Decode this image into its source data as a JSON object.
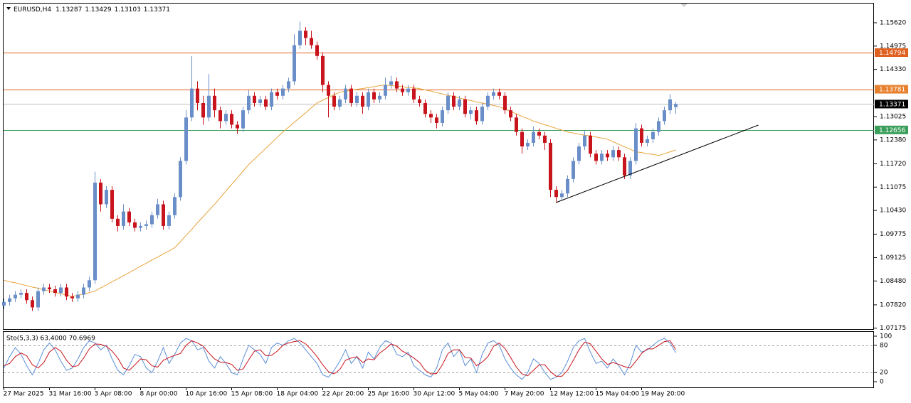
{
  "chart_data": [
    {
      "type": "candlestick",
      "symbol": "EURUSD,H4",
      "header_values": [
        1.13287,
        1.13429,
        1.13103,
        1.13371
      ],
      "categories": [
        "27 Mar 2025",
        null,
        null,
        null,
        null,
        null,
        null,
        null,
        "31 Mar 16:00",
        null,
        null,
        null,
        null,
        null,
        null,
        null,
        "3 Apr 08:00",
        null,
        null,
        null,
        null,
        null,
        null,
        null,
        "8 Apr 00:00",
        null,
        null,
        null,
        null,
        null,
        null,
        null,
        "10 Apr 16:00",
        null,
        null,
        null,
        null,
        null,
        null,
        null,
        "15 Apr 08:00",
        null,
        null,
        null,
        null,
        null,
        null,
        null,
        "18 Apr 04:00",
        null,
        null,
        null,
        null,
        null,
        null,
        null,
        "22 Apr 20:00",
        null,
        null,
        null,
        null,
        null,
        null,
        null,
        "25 Apr 16:00",
        null,
        null,
        null,
        null,
        null,
        null,
        null,
        "30 Apr 12:00",
        null,
        null,
        null,
        null,
        null,
        null,
        null,
        "5 May 04:00",
        null,
        null,
        null,
        null,
        null,
        null,
        null,
        "7 May 20:00",
        null,
        null,
        null,
        null,
        null,
        null,
        null,
        "12 May 12:00",
        null,
        null,
        null,
        null,
        null,
        null,
        null,
        "15 May 04:00",
        null,
        null,
        null,
        null,
        null,
        null,
        null,
        "19 May 20:00",
        null,
        null,
        null,
        null,
        null,
        null
      ],
      "open": [
        1.078,
        1.079,
        1.08,
        1.081,
        1.0815,
        1.0795,
        1.0775,
        1.082,
        1.083,
        1.0825,
        1.0815,
        1.083,
        1.0805,
        1.08,
        1.081,
        1.083,
        1.085,
        1.112,
        1.106,
        1.11,
        1.102,
        1.1,
        1.104,
        1.101,
        1.0995,
        1.1,
        1.1005,
        1.103,
        1.106,
        1.1,
        1.103,
        1.108,
        1.118,
        1.13,
        1.138,
        1.134,
        1.13,
        1.136,
        1.132,
        1.129,
        1.131,
        1.128,
        1.127,
        1.132,
        1.136,
        1.134,
        1.135,
        1.133,
        1.137,
        1.136,
        1.138,
        1.14,
        1.15,
        1.154,
        1.152,
        1.15,
        1.147,
        1.139,
        1.136,
        1.133,
        1.135,
        1.138,
        1.134,
        1.136,
        1.133,
        1.137,
        1.135,
        1.136,
        1.139,
        1.14,
        1.138,
        1.137,
        1.138,
        1.135,
        1.134,
        1.131,
        1.13,
        1.1285,
        1.132,
        1.136,
        1.133,
        1.135,
        1.131,
        1.132,
        1.129,
        1.133,
        1.136,
        1.137,
        1.136,
        1.132,
        1.13,
        1.126,
        1.122,
        1.123,
        1.126,
        1.125,
        1.123,
        1.11,
        1.108,
        1.109,
        1.113,
        1.118,
        1.122,
        1.125,
        1.12,
        1.118,
        1.12,
        1.119,
        1.121,
        1.119,
        1.114,
        1.118,
        1.127,
        1.123,
        1.124,
        1.126,
        1.129,
        1.132,
        1.13287
      ],
      "high": [
        1.08,
        1.081,
        1.082,
        1.0825,
        1.0825,
        1.0805,
        1.083,
        1.084,
        1.084,
        1.0835,
        1.084,
        1.084,
        1.0815,
        1.082,
        1.084,
        1.086,
        1.115,
        1.113,
        1.111,
        1.111,
        1.103,
        1.106,
        1.105,
        1.102,
        1.101,
        1.1015,
        1.104,
        1.1075,
        1.107,
        1.104,
        1.109,
        1.119,
        1.132,
        1.147,
        1.14,
        1.136,
        1.142,
        1.138,
        1.133,
        1.132,
        1.132,
        1.129,
        1.133,
        1.1375,
        1.137,
        1.136,
        1.136,
        1.138,
        1.138,
        1.139,
        1.141,
        1.153,
        1.1565,
        1.155,
        1.154,
        1.151,
        1.148,
        1.14,
        1.137,
        1.136,
        1.139,
        1.139,
        1.137,
        1.137,
        1.138,
        1.138,
        1.137,
        1.141,
        1.1415,
        1.141,
        1.139,
        1.139,
        1.139,
        1.136,
        1.135,
        1.132,
        1.131,
        1.133,
        1.137,
        1.137,
        1.136,
        1.136,
        1.133,
        1.133,
        1.134,
        1.137,
        1.138,
        1.138,
        1.137,
        1.133,
        1.131,
        1.127,
        1.124,
        1.1275,
        1.127,
        1.126,
        1.124,
        1.111,
        1.11,
        1.114,
        1.119,
        1.123,
        1.1265,
        1.126,
        1.121,
        1.121,
        1.121,
        1.122,
        1.122,
        1.12,
        1.119,
        1.1285,
        1.128,
        1.125,
        1.127,
        1.13,
        1.133,
        1.1365,
        1.13429
      ],
      "low": [
        1.077,
        1.078,
        1.079,
        1.08,
        1.0785,
        1.0765,
        1.0765,
        1.081,
        1.0815,
        1.0805,
        1.0805,
        1.0795,
        1.079,
        1.079,
        1.08,
        1.082,
        1.084,
        1.104,
        1.105,
        1.101,
        1.0985,
        1.099,
        1.1,
        1.0985,
        1.0985,
        1.099,
        1.0995,
        1.102,
        1.099,
        1.099,
        1.102,
        1.107,
        1.117,
        1.129,
        1.132,
        1.128,
        1.129,
        1.13,
        1.127,
        1.128,
        1.127,
        1.1255,
        1.126,
        1.131,
        1.133,
        1.133,
        1.132,
        1.132,
        1.135,
        1.135,
        1.137,
        1.139,
        1.149,
        1.15,
        1.149,
        1.146,
        1.137,
        1.13,
        1.132,
        1.132,
        1.134,
        1.133,
        1.133,
        1.131,
        1.132,
        1.134,
        1.134,
        1.135,
        1.138,
        1.137,
        1.136,
        1.136,
        1.134,
        1.133,
        1.13,
        1.1285,
        1.127,
        1.1275,
        1.131,
        1.132,
        1.132,
        1.13,
        1.1295,
        1.128,
        1.128,
        1.132,
        1.135,
        1.135,
        1.131,
        1.129,
        1.125,
        1.12,
        1.121,
        1.122,
        1.124,
        1.121,
        1.108,
        1.1065,
        1.107,
        1.108,
        1.112,
        1.117,
        1.121,
        1.119,
        1.117,
        1.117,
        1.118,
        1.118,
        1.118,
        1.113,
        1.113,
        1.117,
        1.122,
        1.122,
        1.123,
        1.125,
        1.128,
        1.131,
        1.13103
      ],
      "close": [
        1.079,
        1.08,
        1.081,
        1.0815,
        1.0795,
        1.0775,
        1.082,
        1.083,
        1.0825,
        1.0815,
        1.083,
        1.0805,
        1.08,
        1.081,
        1.083,
        1.085,
        1.112,
        1.106,
        1.11,
        1.102,
        1.1,
        1.104,
        1.101,
        1.0995,
        1.1,
        1.1005,
        1.103,
        1.106,
        1.1,
        1.103,
        1.108,
        1.118,
        1.13,
        1.138,
        1.134,
        1.13,
        1.136,
        1.132,
        1.129,
        1.131,
        1.128,
        1.127,
        1.132,
        1.136,
        1.134,
        1.135,
        1.133,
        1.137,
        1.136,
        1.138,
        1.14,
        1.15,
        1.154,
        1.152,
        1.15,
        1.147,
        1.139,
        1.136,
        1.133,
        1.135,
        1.138,
        1.134,
        1.136,
        1.133,
        1.137,
        1.135,
        1.136,
        1.139,
        1.14,
        1.138,
        1.137,
        1.138,
        1.135,
        1.134,
        1.131,
        1.13,
        1.1285,
        1.132,
        1.136,
        1.133,
        1.135,
        1.131,
        1.132,
        1.129,
        1.133,
        1.136,
        1.137,
        1.136,
        1.132,
        1.13,
        1.126,
        1.122,
        1.123,
        1.126,
        1.125,
        1.123,
        1.11,
        1.108,
        1.109,
        1.113,
        1.118,
        1.122,
        1.125,
        1.12,
        1.118,
        1.12,
        1.119,
        1.121,
        1.119,
        1.114,
        1.118,
        1.127,
        1.123,
        1.124,
        1.126,
        1.129,
        1.132,
        1.135,
        1.13371
      ],
      "up_color": "#6a8fc8",
      "down_color": "#c8141c",
      "overlay": {
        "color": "#e8a33c",
        "values": [
          1.085,
          1.0846,
          1.0843,
          1.0839,
          1.0835,
          1.0831,
          1.0828,
          1.0824,
          1.082,
          1.0816,
          1.0813,
          1.0809,
          1.0805,
          1.0809,
          1.0812,
          1.0816,
          1.082,
          1.0829,
          1.0837,
          1.0846,
          1.0854,
          1.0863,
          1.0871,
          1.088,
          1.0889,
          1.0897,
          1.0906,
          1.0914,
          1.0923,
          1.0931,
          1.094,
          1.0957,
          1.0974,
          1.0991,
          1.1009,
          1.1026,
          1.1043,
          1.106,
          1.1078,
          1.1097,
          1.1115,
          1.1133,
          1.1152,
          1.117,
          1.1185,
          1.12,
          1.1215,
          1.123,
          1.1245,
          1.126,
          1.1273,
          1.1287,
          1.13,
          1.1313,
          1.1327,
          1.134,
          1.1348,
          1.1355,
          1.1363,
          1.137,
          1.1373,
          1.1375,
          1.1378,
          1.138,
          1.1383,
          1.1385,
          1.1388,
          1.139,
          1.1388,
          1.1387,
          1.1385,
          1.1383,
          1.1382,
          1.138,
          1.1376,
          1.1373,
          1.1369,
          1.1365,
          1.1361,
          1.1358,
          1.1354,
          1.135,
          1.1347,
          1.1343,
          1.134,
          1.1337,
          1.1333,
          1.133,
          1.1323,
          1.1317,
          1.131,
          1.1303,
          1.1297,
          1.129,
          1.1285,
          1.128,
          1.1275,
          1.127,
          1.1265,
          1.126,
          1.1257,
          1.1254,
          1.1251,
          1.1249,
          1.1246,
          1.1243,
          1.124,
          1.1233,
          1.1226,
          1.1219,
          1.1212,
          1.1205,
          1.1203,
          1.12,
          1.1198,
          1.1195,
          1.12,
          1.1205,
          1.121
        ]
      },
      "levels": [
        {
          "value": 1.14794,
          "color": "#e0601f",
          "label_color": "#e0601f"
        },
        {
          "value": 1.13781,
          "color": "#e0601f",
          "label_color": "#e8812f"
        },
        {
          "value": 1.13371,
          "color": "#c0c0c0",
          "label_color": "#000000"
        },
        {
          "value": 1.12656,
          "color": "#3a9e5a",
          "label_color": "#3a9e5a"
        }
      ],
      "trendline": {
        "start": [
          97,
          1.1065
        ],
        "end": [
          132.5,
          1.1279
        ],
        "color": "#000000"
      },
      "ylim": [
        1.0715,
        1.1617
      ],
      "yticks": [
        {
          "value": 1.1562,
          "label": "1.15620"
        },
        {
          "value": 1.14975,
          "label": "1.14975"
        },
        {
          "value": 1.1433,
          "label": "1.14330"
        },
        {
          "value": 1.13025,
          "label": "1.13025"
        },
        {
          "value": 1.1238,
          "label": "1.12380"
        },
        {
          "value": 1.1172,
          "label": "1.11720"
        },
        {
          "value": 1.11075,
          "label": "1.11075"
        },
        {
          "value": 1.1043,
          "label": "1.10430"
        },
        {
          "value": 1.09775,
          "label": "1.09775"
        },
        {
          "value": 1.09125,
          "label": "1.09125"
        },
        {
          "value": 1.0848,
          "label": "1.08480"
        },
        {
          "value": 1.0782,
          "label": "1.07820"
        },
        {
          "value": 1.07175,
          "label": "1.07175"
        }
      ]
    },
    {
      "type": "line",
      "title": "Sto(5,3,3) 63.4000 70.6969",
      "series": [
        {
          "color": "#5b8fd6",
          "values": [
            30,
            55,
            75,
            60,
            35,
            15,
            40,
            70,
            85,
            70,
            45,
            25,
            30,
            50,
            75,
            90,
            85,
            70,
            80,
            50,
            25,
            15,
            35,
            60,
            55,
            30,
            20,
            45,
            75,
            40,
            60,
            85,
            95,
            90,
            70,
            75,
            45,
            30,
            55,
            40,
            20,
            15,
            50,
            80,
            70,
            60,
            40,
            75,
            85,
            80,
            90,
            95,
            85,
            70,
            55,
            40,
            15,
            10,
            25,
            45,
            70,
            40,
            55,
            30,
            65,
            50,
            75,
            90,
            85,
            60,
            55,
            65,
            35,
            25,
            15,
            10,
            30,
            70,
            85,
            55,
            70,
            35,
            50,
            20,
            60,
            85,
            90,
            80,
            50,
            30,
            15,
            5,
            20,
            50,
            40,
            20,
            5,
            10,
            20,
            45,
            75,
            90,
            95,
            65,
            40,
            45,
            30,
            50,
            35,
            15,
            40,
            80,
            65,
            70,
            80,
            90,
            95,
            85,
            63.4
          ]
        },
        {
          "color": "#c8141c",
          "values": [
            35,
            40,
            55,
            63,
            57,
            37,
            30,
            42,
            65,
            75,
            67,
            47,
            33,
            35,
            52,
            72,
            83,
            82,
            78,
            67,
            52,
            30,
            25,
            37,
            50,
            48,
            35,
            32,
            47,
            53,
            58,
            62,
            80,
            90,
            85,
            78,
            63,
            50,
            43,
            42,
            38,
            25,
            28,
            48,
            67,
            70,
            57,
            58,
            67,
            80,
            85,
            88,
            90,
            83,
            70,
            55,
            37,
            22,
            17,
            27,
            47,
            52,
            55,
            42,
            50,
            48,
            63,
            72,
            83,
            78,
            67,
            60,
            52,
            42,
            25,
            17,
            18,
            37,
            62,
            70,
            70,
            53,
            52,
            35,
            43,
            55,
            78,
            85,
            73,
            53,
            32,
            17,
            13,
            25,
            37,
            37,
            22,
            12,
            12,
            25,
            47,
            70,
            87,
            83,
            67,
            50,
            38,
            42,
            38,
            33,
            30,
            45,
            62,
            72,
            72,
            80,
            88,
            90,
            70.6969
          ]
        }
      ],
      "dotted_levels": [
        20,
        80
      ],
      "ylim": [
        -12.5,
        110.9
      ],
      "yticks": [
        0,
        20,
        80,
        100
      ]
    }
  ]
}
